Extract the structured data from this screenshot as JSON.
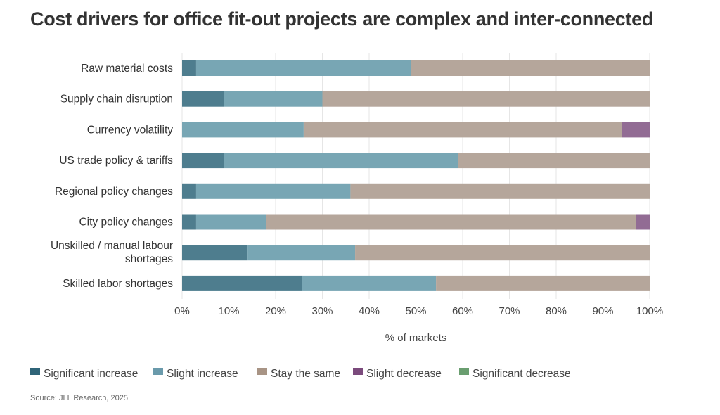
{
  "chart_data": {
    "type": "bar",
    "orientation": "horizontal",
    "stacked": true,
    "title": "Cost drivers for office fit-out projects are complex and inter-connected",
    "xlabel": "% of markets",
    "ylabel": "",
    "xlim": [
      0,
      100
    ],
    "xticks": [
      "0%",
      "10%",
      "20%",
      "30%",
      "40%",
      "50%",
      "60%",
      "70%",
      "80%",
      "90%",
      "100%"
    ],
    "grid": true,
    "legend": "bottom",
    "categories": [
      "Raw material costs",
      "Supply chain disruption",
      "Currency volatility",
      "US trade policy & tariffs",
      "Regional policy changes",
      "City policy changes",
      "Unskilled / manual labour shortages",
      "Skilled labor shortages"
    ],
    "series": [
      {
        "name": "Significant increase",
        "color": "#2f6478",
        "bar_color": "#4e7d8e",
        "values": [
          3,
          9,
          0,
          9,
          3,
          3,
          14,
          25.7
        ]
      },
      {
        "name": "Slight increase",
        "color": "#6a9aab",
        "bar_color": "#78a6b4",
        "values": [
          46,
          21,
          26,
          50,
          33,
          15,
          23,
          28.6
        ]
      },
      {
        "name": "Stay the same",
        "color": "#a89485",
        "bar_color": "#b5a69b",
        "values": [
          51,
          70,
          68,
          41,
          64,
          79,
          63,
          45.7
        ]
      },
      {
        "name": "Slight decrease",
        "color": "#7b4a7c",
        "bar_color": "#926c94",
        "values": [
          0,
          0,
          6,
          0,
          0,
          3,
          0,
          0
        ]
      },
      {
        "name": "Significant decrease",
        "color": "#6a9e70",
        "bar_color": "#6a9e70",
        "values": [
          0,
          0,
          0,
          0,
          0,
          0,
          0,
          0
        ]
      }
    ]
  },
  "source": "Source: JLL Research, 2025"
}
